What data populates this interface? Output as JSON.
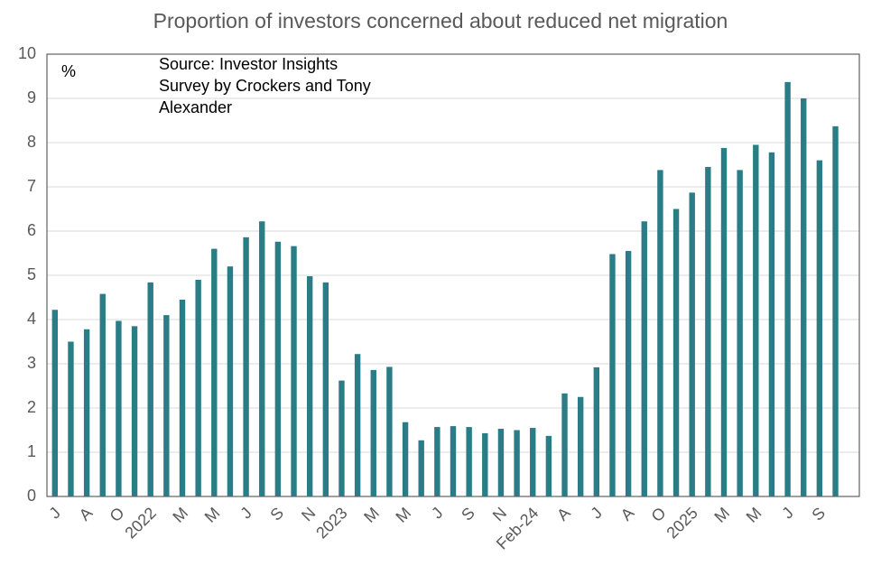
{
  "chart_data": {
    "type": "bar",
    "title": "Proportion of investors concerned about reduced net migration",
    "unit_label": "%",
    "source": [
      "Source: Investor Insights",
      "Survey by Crockers and Tony",
      "Alexander"
    ],
    "categories": [
      "J",
      null,
      "A",
      null,
      "O",
      null,
      "2022",
      null,
      "M",
      null,
      "M",
      null,
      "J",
      null,
      "S",
      null,
      "N",
      null,
      "2023",
      null,
      "M",
      null,
      "M",
      null,
      "J",
      null,
      "S",
      null,
      "N",
      null,
      "Feb-24",
      null,
      "A",
      null,
      "J",
      null,
      "A",
      null,
      "O",
      null,
      "2025",
      null,
      "M",
      null,
      "M",
      null,
      "J",
      null,
      "S",
      null,
      null
    ],
    "values": [
      4.22,
      3.5,
      3.78,
      4.58,
      3.97,
      3.85,
      4.84,
      4.1,
      4.45,
      4.9,
      5.6,
      5.2,
      5.86,
      6.22,
      5.76,
      5.66,
      4.98,
      4.84,
      2.62,
      3.22,
      2.86,
      2.93,
      1.68,
      1.27,
      1.57,
      1.59,
      1.57,
      1.43,
      1.53,
      1.5,
      1.55,
      1.37,
      2.33,
      2.25,
      2.92,
      5.48,
      5.55,
      6.22,
      7.38,
      6.5,
      6.87,
      7.45,
      7.88,
      7.38,
      7.95,
      7.78,
      9.37,
      9.0,
      7.6,
      8.37,
      null
    ],
    "color": "#2a7d86",
    "ylim": [
      0,
      10
    ],
    "yticks": [
      0,
      1,
      2,
      3,
      4,
      5,
      6,
      7,
      8,
      9,
      10
    ],
    "grid": true
  }
}
